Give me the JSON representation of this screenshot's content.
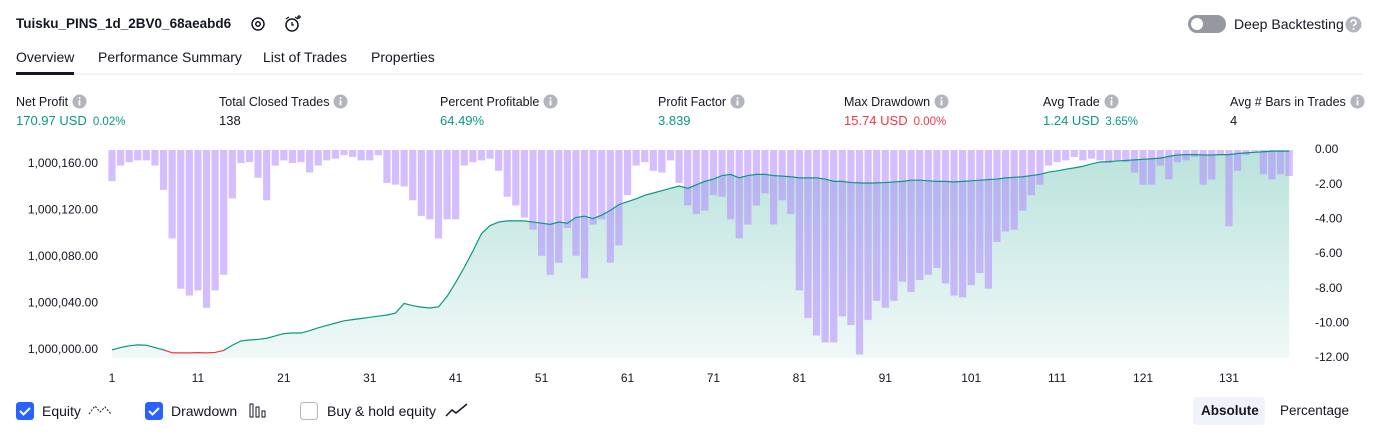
{
  "header": {
    "title": "Tuisku_PINS_1d_2BV0_68aeabd6",
    "toggle_label": "Deep Backtesting"
  },
  "tabs": [
    "Overview",
    "Performance Summary",
    "List of Trades",
    "Properties"
  ],
  "metrics": [
    {
      "label": "Net Profit",
      "value": "170.97 USD",
      "sub": "0.02%",
      "tone": "positive"
    },
    {
      "label": "Total Closed Trades",
      "value": "138",
      "tone": "neutral"
    },
    {
      "label": "Percent Profitable",
      "value": "64.49%",
      "tone": "positive"
    },
    {
      "label": "Profit Factor",
      "value": "3.839",
      "tone": "positive"
    },
    {
      "label": "Max Drawdown",
      "value": "15.74 USD",
      "sub": "0.00%",
      "tone": "negative"
    },
    {
      "label": "Avg Trade",
      "value": "1.24 USD",
      "sub": "3.65%",
      "tone": "positive"
    },
    {
      "label": "Avg # Bars in Trades",
      "value": "4",
      "tone": "neutral"
    }
  ],
  "chart_data": {
    "type": "combo",
    "x": [
      1,
      2,
      3,
      4,
      5,
      6,
      7,
      8,
      9,
      10,
      11,
      12,
      13,
      14,
      15,
      16,
      17,
      18,
      19,
      20,
      21,
      22,
      23,
      24,
      25,
      26,
      27,
      28,
      29,
      30,
      31,
      32,
      33,
      34,
      35,
      36,
      37,
      38,
      39,
      40,
      41,
      42,
      43,
      44,
      45,
      46,
      47,
      48,
      49,
      50,
      51,
      52,
      53,
      54,
      55,
      56,
      57,
      58,
      59,
      60,
      61,
      62,
      63,
      64,
      65,
      66,
      67,
      68,
      69,
      70,
      71,
      72,
      73,
      74,
      75,
      76,
      77,
      78,
      79,
      80,
      81,
      82,
      83,
      84,
      85,
      86,
      87,
      88,
      89,
      90,
      91,
      92,
      93,
      94,
      95,
      96,
      97,
      98,
      99,
      100,
      101,
      102,
      103,
      104,
      105,
      106,
      107,
      108,
      109,
      110,
      111,
      112,
      113,
      114,
      115,
      116,
      117,
      118,
      119,
      120,
      121,
      122,
      123,
      124,
      125,
      126,
      127,
      128,
      129,
      130,
      131,
      132,
      133,
      134,
      135,
      136,
      137,
      138
    ],
    "xlim": [
      0.5,
      139.5
    ],
    "xticks": [
      1,
      11,
      21,
      31,
      41,
      51,
      61,
      71,
      81,
      91,
      101,
      111,
      121,
      131
    ],
    "ylim": [
      999993,
      1000172
    ],
    "yticks": [
      {
        "value": 1000000,
        "label": "1,000,000.00"
      },
      {
        "value": 1000040,
        "label": "1,000,040.00"
      },
      {
        "value": 1000080,
        "label": "1,000,080.00"
      },
      {
        "value": 1000120,
        "label": "1,000,120.00"
      },
      {
        "value": 1000160,
        "label": "1,000,160.00"
      }
    ],
    "y2lim": [
      -12,
      0
    ],
    "y2ticks": [
      {
        "value": 0,
        "label": "0.00"
      },
      {
        "value": -2,
        "label": "-2.00"
      },
      {
        "value": -4,
        "label": "-4.00"
      },
      {
        "value": -6,
        "label": "-6.00"
      },
      {
        "value": -8,
        "label": "-8.00"
      },
      {
        "value": -10,
        "label": "-10.00"
      },
      {
        "value": -12,
        "label": "-12.00"
      }
    ],
    "series": [
      {
        "name": "Equity",
        "type": "line",
        "color": "#089981",
        "negative_color": "#f23645",
        "checked": true,
        "values": [
          1000000,
          1000002,
          1000003.5,
          1000004.3,
          1000004,
          1000002,
          1000000,
          999997.5,
          999997.4,
          999997.4,
          999997.6,
          999997.4,
          999997.8,
          999999.5,
          1000004,
          1000007.7,
          1000008.5,
          1000009,
          1000010,
          1000012,
          1000014,
          1000014.5,
          1000014.5,
          1000016.5,
          1000019,
          1000021,
          1000023,
          1000025,
          1000026,
          1000027,
          1000028,
          1000029,
          1000030,
          1000031.7,
          1000040,
          1000038,
          1000036.8,
          1000036,
          1000037,
          1000046,
          1000058,
          1000071,
          1000085,
          1000100,
          1000107,
          1000110,
          1000111,
          1000111,
          1000111,
          1000110,
          1000109,
          1000108,
          1000110,
          1000109,
          1000114,
          1000115,
          1000113,
          1000116,
          1000120,
          1000125,
          1000127.5,
          1000130,
          1000133,
          1000135,
          1000137,
          1000139,
          1000141,
          1000139,
          1000142,
          1000145,
          1000147,
          1000150,
          1000151,
          1000148,
          1000150,
          1000151,
          1000151,
          1000150,
          1000149.5,
          1000149,
          1000148,
          1000148,
          1000148,
          1000147,
          1000145,
          1000145,
          1000144,
          1000143.7,
          1000143.5,
          1000143.7,
          1000144,
          1000144.5,
          1000145,
          1000146,
          1000146,
          1000145.5,
          1000145,
          1000145,
          1000144.6,
          1000145,
          1000145.5,
          1000146,
          1000146.5,
          1000147,
          1000148,
          1000148.5,
          1000149,
          1000150,
          1000151,
          1000153,
          1000154,
          1000155.5,
          1000156.6,
          1000158,
          1000160,
          1000161.7,
          1000162,
          1000162.6,
          1000163,
          1000163.5,
          1000164,
          1000164.5,
          1000165,
          1000166.5,
          1000167.7,
          1000168,
          1000168,
          1000167.7,
          1000167.7,
          1000168,
          1000168,
          1000169,
          1000169.5,
          1000170,
          1000170.5,
          1000171,
          1000171,
          1000170.97
        ]
      },
      {
        "name": "Drawdown",
        "type": "bar",
        "axis": "y2",
        "color": "#b388ff",
        "checked": true,
        "values": [
          -1.8,
          -0.9,
          -0.7,
          -0.6,
          -0.6,
          -0.9,
          -2.3,
          -5.1,
          -8.0,
          -8.4,
          -8.1,
          -9.1,
          -8.1,
          -7.2,
          -2.8,
          -0.75,
          -0.7,
          -1.6,
          -2.9,
          -0.9,
          -0.6,
          -0.75,
          -0.7,
          -1.3,
          -0.9,
          -0.6,
          -0.5,
          -0.3,
          -0.4,
          -0.6,
          -0.6,
          -0.3,
          -1.9,
          -2.0,
          -2.1,
          -2.9,
          -3.8,
          -4.0,
          -5.1,
          -4.0,
          -4.0,
          -0.9,
          -0.7,
          -0.6,
          -0.5,
          -1.2,
          -2.7,
          -3.2,
          -3.9,
          -4.6,
          -6.1,
          -7.2,
          -6.5,
          -4.5,
          -6.1,
          -7.4,
          -4.3,
          -4.0,
          -6.5,
          -5.5,
          -2.6,
          -0.9,
          -0.7,
          -1.2,
          -1.3,
          -0.6,
          -1.9,
          -3.2,
          -3.7,
          -3.5,
          -2.6,
          -2.7,
          -4.0,
          -5.1,
          -4.3,
          -3.2,
          -2.5,
          -4.3,
          -2.9,
          -3.7,
          -8.1,
          -9.7,
          -10.7,
          -11.1,
          -11.1,
          -9.6,
          -10.1,
          -11.8,
          -9.8,
          -8.7,
          -9.1,
          -8.7,
          -7.6,
          -8.2,
          -7.5,
          -7.2,
          -6.8,
          -7.7,
          -8.4,
          -8.5,
          -7.8,
          -7.1,
          -8.0,
          -5.3,
          -4.7,
          -4.6,
          -3.5,
          -2.6,
          -2.0,
          -0.9,
          -0.7,
          -0.6,
          -0.4,
          -0.6,
          -0.5,
          -0.6,
          -0.75,
          -0.6,
          -0.7,
          -1.3,
          -2.0,
          -2.0,
          -0.9,
          -1.7,
          -0.7,
          -0.6,
          -0.4,
          -2.0,
          -1.7,
          -0.3,
          -4.4,
          -1.2,
          -0.3,
          -0.1,
          -1.4,
          -1.7,
          -1.4,
          -1.5
        ]
      }
    ]
  },
  "footer": {
    "buy_hold": {
      "label": "Buy & hold equity",
      "checked": false
    },
    "modes": [
      "Absolute",
      "Percentage"
    ],
    "active_mode": 0
  }
}
